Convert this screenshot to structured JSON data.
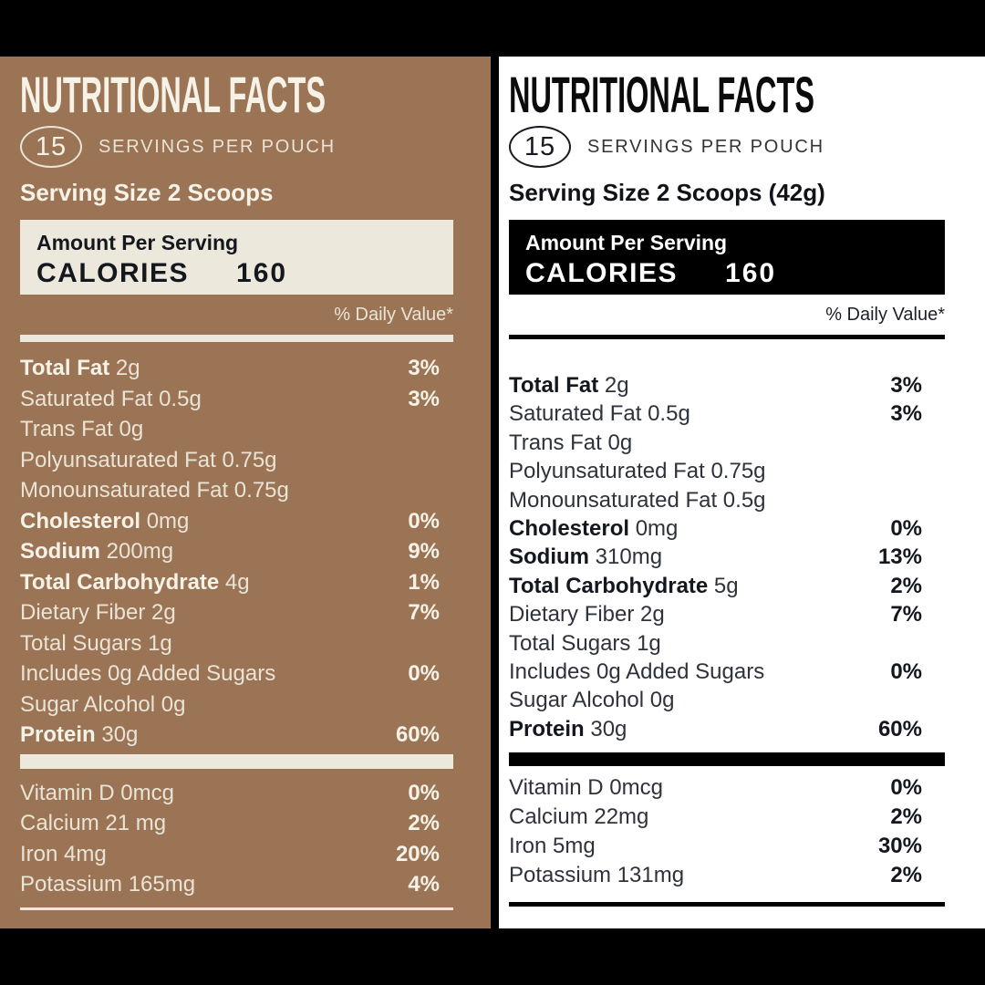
{
  "colors": {
    "frame_black": "#000000",
    "left_panel_background": "#9A7455",
    "left_panel_cream": "#ECE8DB",
    "left_panel_text": "#EAE4D7",
    "left_panel_bold_text": "#F6F2E7",
    "calories_box_text_left": "#14181E",
    "right_panel_background": "#FFFFFF",
    "right_panel_text": "#2E333B",
    "right_panel_bold_text": "#13171E"
  },
  "panels": [
    {
      "title": "NUTRITIONAL FACTS",
      "servings_count": "15",
      "servings_label": "SERVINGS PER POUCH",
      "serving_size": "Serving Size 2 Scoops",
      "amount_per_serving_label": "Amount Per Serving",
      "calories_label": "CALORIES",
      "calories_value": "160",
      "daily_value_note": "% Daily Value*",
      "nutrients": [
        {
          "name_bold": "Total Fat",
          "name_rest": " 2g",
          "percent": "3%"
        },
        {
          "name_bold": "",
          "name_rest": "Saturated Fat 0.5g",
          "percent": "3%"
        },
        {
          "name_bold": "",
          "name_rest": "Trans Fat 0g",
          "percent": ""
        },
        {
          "name_bold": "",
          "name_rest": "Polyunsaturated Fat 0.75g",
          "percent": ""
        },
        {
          "name_bold": "",
          "name_rest": "Monounsaturated Fat 0.75g",
          "percent": ""
        },
        {
          "name_bold": "Cholesterol",
          "name_rest": " 0mg",
          "percent": "0%"
        },
        {
          "name_bold": "Sodium",
          "name_rest": " 200mg",
          "percent": "9%"
        },
        {
          "name_bold": "Total Carbohydrate",
          "name_rest": " 4g",
          "percent": "1%"
        },
        {
          "name_bold": "",
          "name_rest": "Dietary Fiber 2g",
          "percent": "7%"
        },
        {
          "name_bold": "",
          "name_rest": "Total Sugars 1g",
          "percent": ""
        },
        {
          "name_bold": "",
          "name_rest": "Includes 0g Added Sugars",
          "percent": "0%"
        },
        {
          "name_bold": "",
          "name_rest": "Sugar Alcohol 0g",
          "percent": ""
        },
        {
          "name_bold": "Protein",
          "name_rest": " 30g",
          "percent": "60%"
        }
      ],
      "micronutrients": [
        {
          "name": "Vitamin D 0mcg",
          "percent": "0%"
        },
        {
          "name": "Calcium 21 mg",
          "percent": "2%"
        },
        {
          "name": "Iron 4mg",
          "percent": "20%"
        },
        {
          "name": "Potassium 165mg",
          "percent": "4%"
        }
      ]
    },
    {
      "title": "NUTRITIONAL FACTS",
      "servings_count": "15",
      "servings_label": "SERVINGS PER POUCH",
      "serving_size": "Serving Size 2 Scoops (42g)",
      "amount_per_serving_label": "Amount Per Serving",
      "calories_label": "CALORIES",
      "calories_value": "160",
      "daily_value_note": "% Daily Value*",
      "nutrients": [
        {
          "name_bold": "Total Fat",
          "name_rest": " 2g",
          "percent": "3%"
        },
        {
          "name_bold": "",
          "name_rest": "Saturated Fat 0.5g",
          "percent": "3%"
        },
        {
          "name_bold": "",
          "name_rest": "Trans Fat 0g",
          "percent": ""
        },
        {
          "name_bold": "",
          "name_rest": "Polyunsaturated Fat 0.75g",
          "percent": ""
        },
        {
          "name_bold": "",
          "name_rest": "Monounsaturated Fat 0.5g",
          "percent": ""
        },
        {
          "name_bold": "Cholesterol",
          "name_rest": " 0mg",
          "percent": "0%"
        },
        {
          "name_bold": "Sodium",
          "name_rest": " 310mg",
          "percent": "13%"
        },
        {
          "name_bold": "Total Carbohydrate",
          "name_rest": " 5g",
          "percent": "2%"
        },
        {
          "name_bold": "",
          "name_rest": "Dietary Fiber 2g",
          "percent": "7%"
        },
        {
          "name_bold": "",
          "name_rest": "Total Sugars 1g",
          "percent": ""
        },
        {
          "name_bold": "",
          "name_rest": "Includes 0g Added Sugars",
          "percent": "0%"
        },
        {
          "name_bold": "",
          "name_rest": "Sugar Alcohol 0g",
          "percent": ""
        },
        {
          "name_bold": "Protein",
          "name_rest": " 30g",
          "percent": "60%"
        }
      ],
      "micronutrients": [
        {
          "name": "Vitamin D 0mcg",
          "percent": "0%"
        },
        {
          "name": "Calcium 22mg",
          "percent": "2%"
        },
        {
          "name": "Iron 5mg",
          "percent": "30%"
        },
        {
          "name": "Potassium  131mg",
          "percent": "2%"
        }
      ]
    }
  ]
}
